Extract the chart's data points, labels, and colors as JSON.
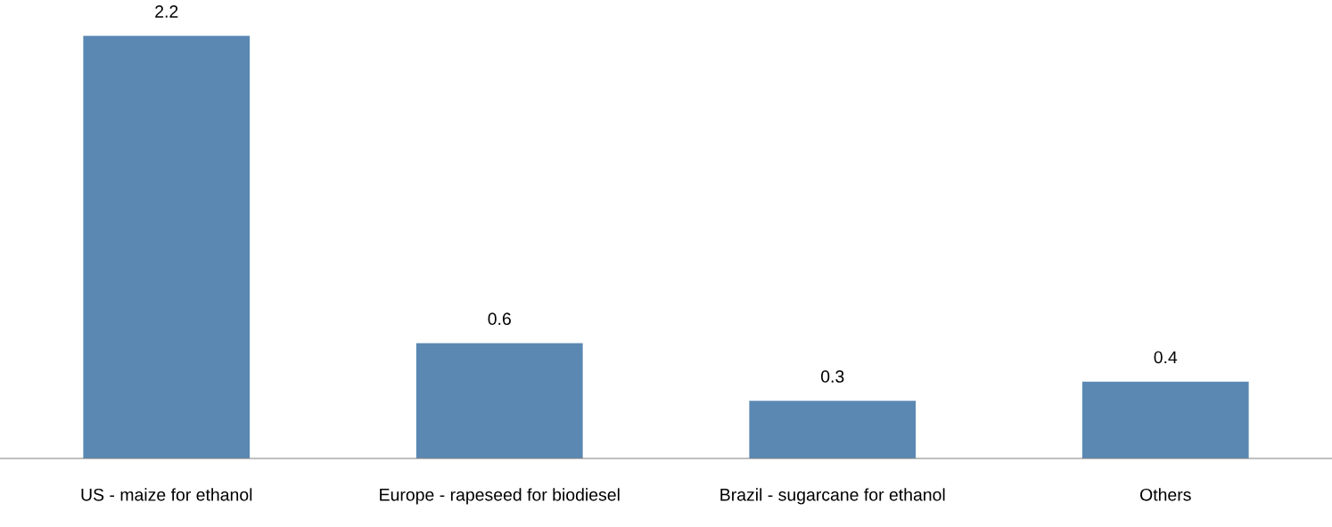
{
  "chart_data": {
    "type": "bar",
    "categories": [
      "US - maize for ethanol",
      "Europe - rapeseed for biodiesel",
      "Brazil - sugarcane for ethanol",
      "Others"
    ],
    "values": [
      2.2,
      0.6,
      0.3,
      0.4
    ],
    "color": "#5b88b3",
    "data_labels": true,
    "tick_labels": "x"
  }
}
